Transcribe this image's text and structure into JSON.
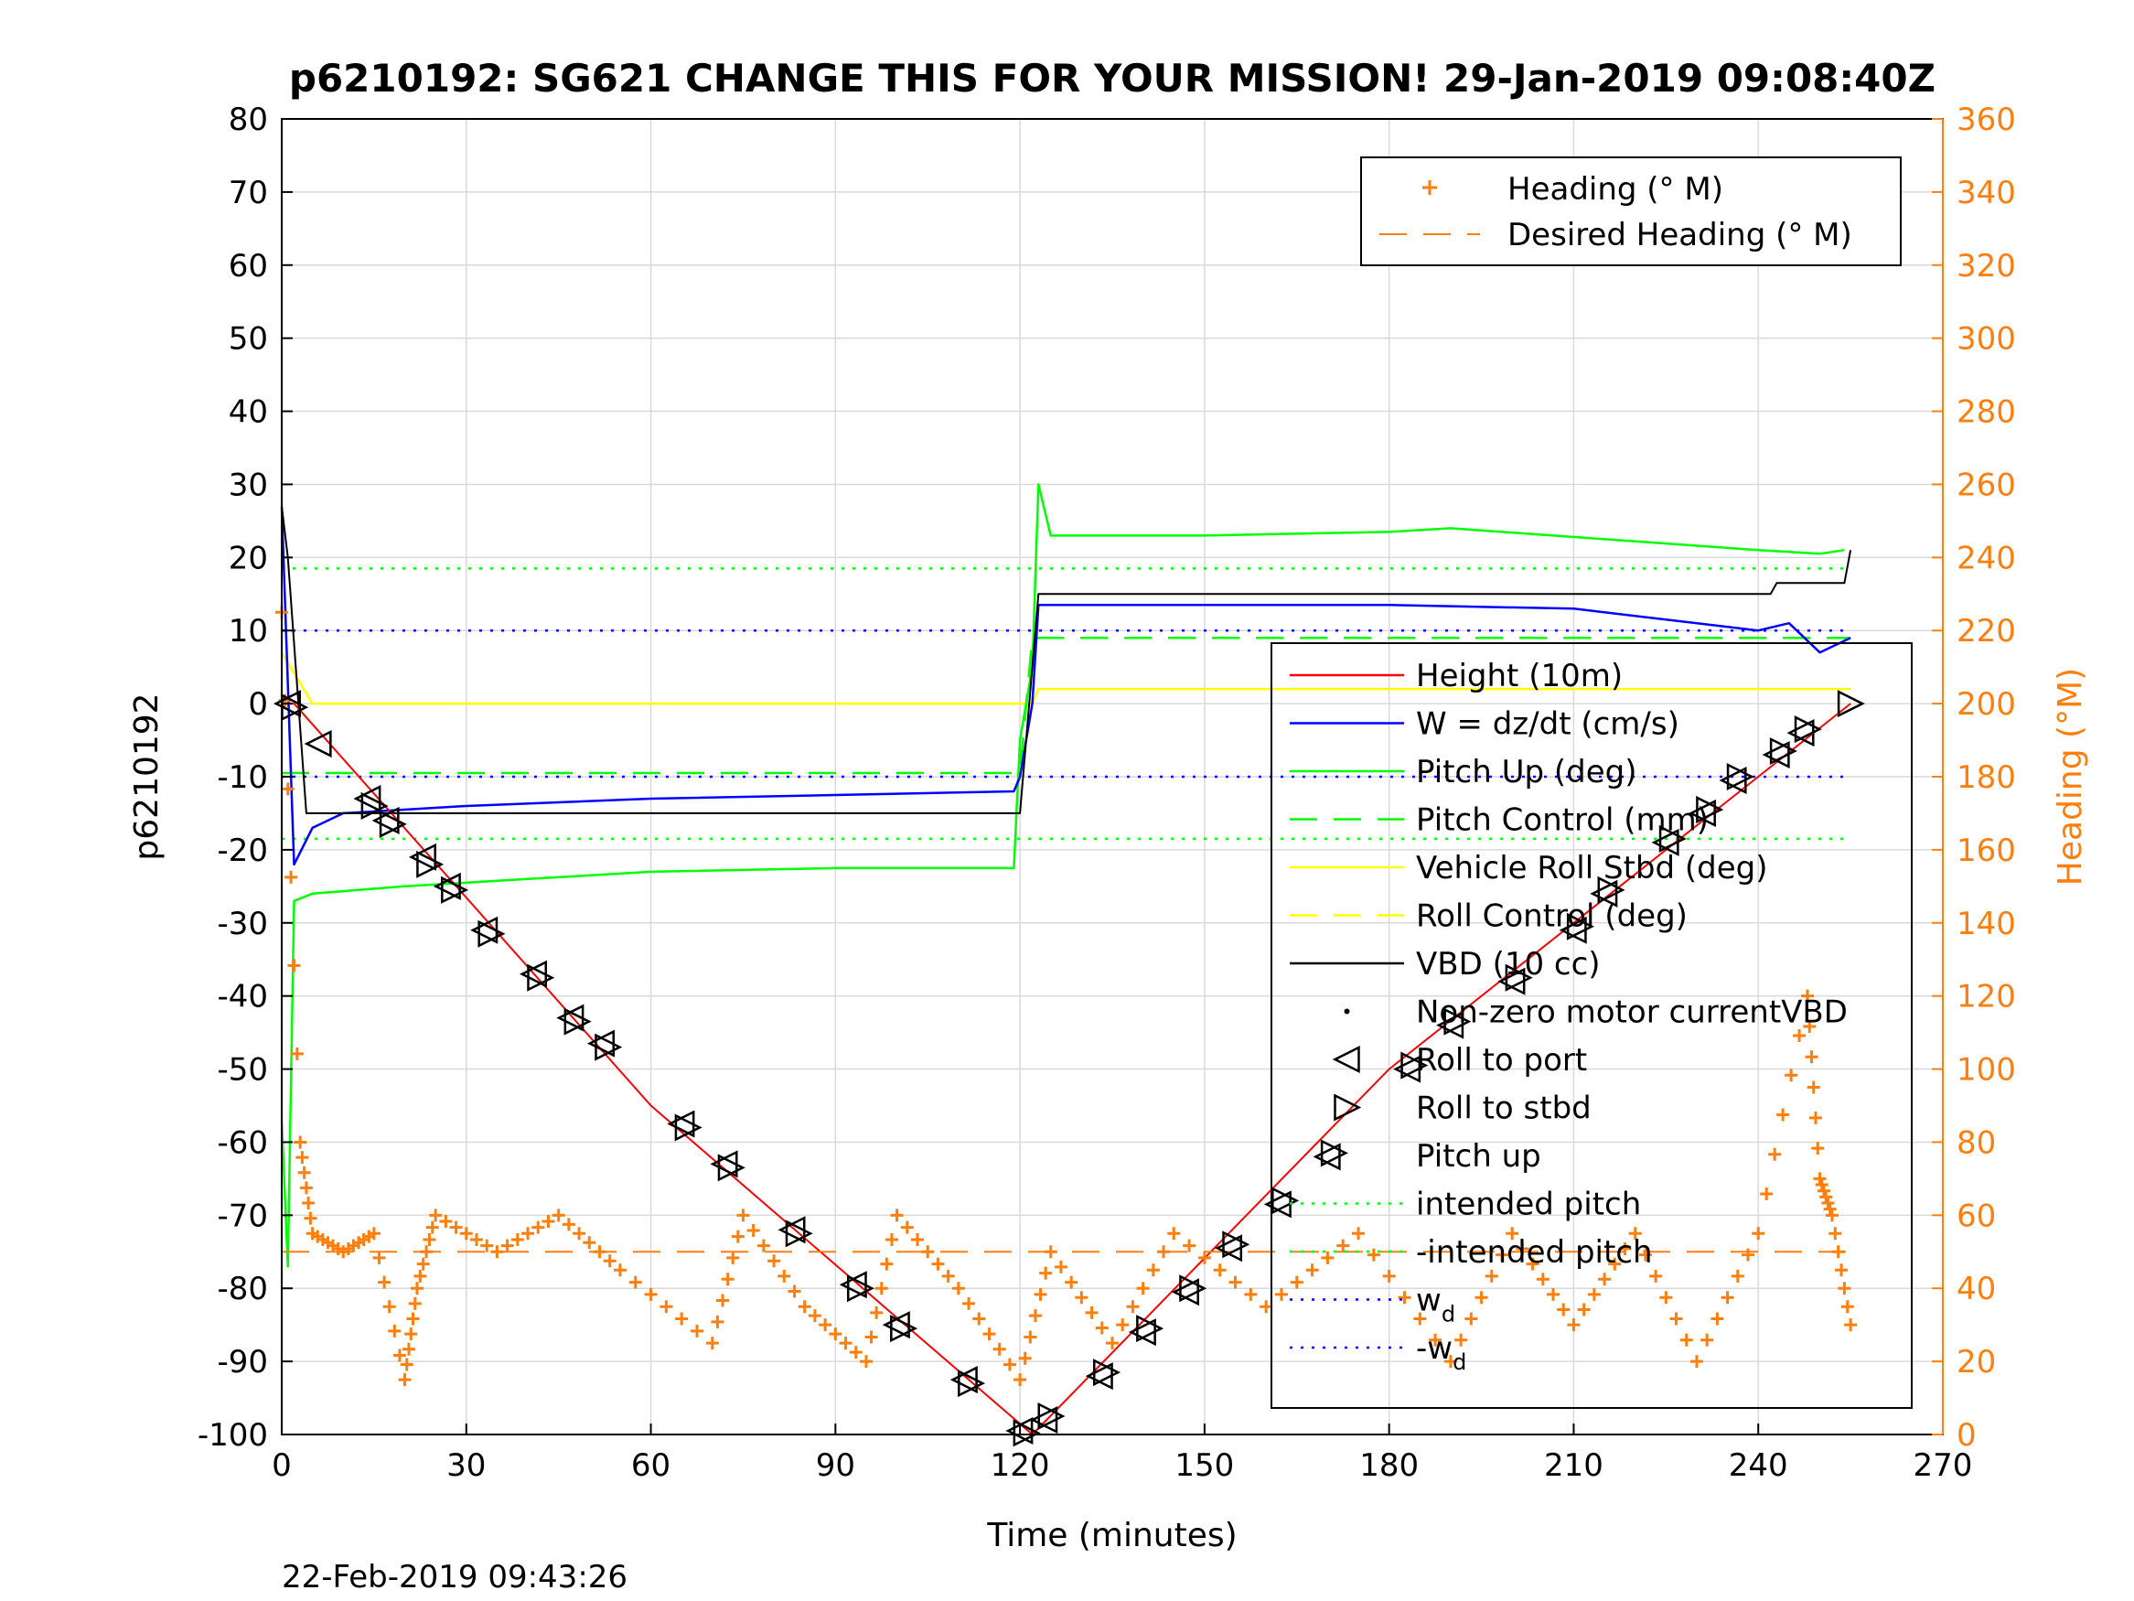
{
  "chart_data": {
    "type": "line",
    "title": "p6210192: SG621 CHANGE THIS FOR YOUR MISSION! 29-Jan-2019 09:08:40Z",
    "xlabel": "Time (minutes)",
    "ylabel": "p6210192",
    "ylabel_right": "Heading (°M)",
    "xlim": [
      0,
      270
    ],
    "ylim": [
      -100,
      80
    ],
    "ylim_right": [
      0,
      360
    ],
    "xticks": [
      "0",
      "30",
      "60",
      "90",
      "120",
      "150",
      "180",
      "210",
      "240",
      "270"
    ],
    "yticks": [
      "80",
      "70",
      "60",
      "50",
      "40",
      "30",
      "20",
      "10",
      "0",
      "-10",
      "-20",
      "-30",
      "-40",
      "-50",
      "-60",
      "-70",
      "-80",
      "-90",
      "-100"
    ],
    "yticks_right": [
      "360",
      "340",
      "320",
      "300",
      "280",
      "260",
      "240",
      "220",
      "200",
      "180",
      "160",
      "140",
      "120",
      "100",
      "80",
      "60",
      "40",
      "20",
      "0"
    ],
    "grid": true,
    "footer": "22-Feb-2019 09:43:26",
    "colors": {
      "heading": "#ff7f0e",
      "height": "#ff0000",
      "w": "#0000ff",
      "pitch": "#00ff00",
      "roll": "#ffff00",
      "vbd": "#000000",
      "grid": "#d9d9d9"
    },
    "legend_right": {
      "placement": "top-right",
      "entries": [
        "Heading (° M)",
        "Desired Heading (° M)"
      ]
    },
    "legend_left": {
      "placement": "center-right",
      "entries": [
        "Height (10m)",
        "W = dz/dt (cm/s)",
        "Pitch Up (deg)",
        "Pitch Control (mm)",
        "Vehicle Roll Stbd (deg)",
        "Roll Control (deg)",
        "VBD (10 cc)",
        "Non-zero motor currentVBD",
        "Roll to port",
        "Roll to stbd",
        "Pitch up",
        "intended pitch",
        "-intended pitch",
        "w",
        "-w"
      ],
      "subscript": "d"
    },
    "series": [
      {
        "name": "Height (10m)",
        "x": [
          0,
          2,
          60,
          122,
          180,
          255
        ],
        "y": [
          0,
          0,
          -55,
          -100,
          -50,
          0
        ]
      },
      {
        "name": "W = dz/dt (cm/s)",
        "x": [
          0,
          2,
          5,
          10,
          30,
          60,
          90,
          119,
          120,
          122,
          123,
          150,
          180,
          210,
          240,
          245,
          250,
          255
        ],
        "y": [
          27,
          -22,
          -17,
          -15,
          -14,
          -13,
          -12.5,
          -12,
          -10,
          0,
          13.5,
          13.5,
          13.5,
          13,
          10,
          11,
          7,
          9
        ]
      },
      {
        "name": "Pitch Up (deg)",
        "x": [
          0,
          1,
          2,
          5,
          20,
          40,
          60,
          90,
          119,
          120,
          122,
          123,
          125,
          150,
          180,
          190,
          240,
          250,
          254
        ],
        "y": [
          -57,
          -77,
          -27,
          -26,
          -25,
          -24,
          -23,
          -22.5,
          -22.5,
          -5,
          5,
          30,
          23,
          23,
          23.5,
          24,
          21,
          20.5,
          21
        ]
      },
      {
        "name": "Pitch Control (mm)",
        "x": [
          0,
          120,
          122,
          255
        ],
        "y": [
          -9.5,
          -9.5,
          9,
          9
        ]
      },
      {
        "name": "Vehicle Roll Stbd (deg)",
        "x": [
          0,
          5,
          10,
          60,
          119,
          122,
          123,
          150,
          200,
          240,
          255
        ],
        "y": [
          7,
          0,
          0,
          0,
          0,
          0,
          2,
          2,
          2,
          2,
          2
        ]
      },
      {
        "name": "VBD (10 cc)",
        "x": [
          0,
          1,
          4,
          120,
          123,
          242,
          243,
          254,
          255
        ],
        "y": [
          27,
          20,
          -15,
          -15,
          15,
          15,
          16.5,
          16.5,
          21
        ]
      },
      {
        "name": "Heading (° M)",
        "x": [
          0,
          3,
          5,
          10,
          15,
          20,
          22,
          25,
          35,
          45,
          55,
          70,
          75,
          85,
          95,
          100,
          110,
          120,
          125,
          135,
          145,
          160,
          175,
          190,
          200,
          210,
          220,
          230,
          240,
          248,
          250,
          252,
          255
        ],
        "y": [
          225,
          80,
          55,
          50,
          55,
          15,
          40,
          60,
          50,
          60,
          45,
          25,
          60,
          35,
          20,
          60,
          40,
          15,
          50,
          25,
          55,
          35,
          55,
          20,
          55,
          30,
          55,
          20,
          55,
          120,
          70,
          60,
          30
        ]
      },
      {
        "name": "Desired Heading (° M)",
        "x": [
          0,
          120,
          125,
          240,
          250,
          255
        ],
        "y": [
          50,
          50,
          50,
          50,
          50,
          50
        ]
      }
    ],
    "lines_constant": [
      {
        "name": "intended pitch",
        "y": 18.5
      },
      {
        "name": "-intended pitch",
        "y": -18.5
      },
      {
        "name": "w_d",
        "y": 10
      },
      {
        "name": "-w_d",
        "y": -10
      }
    ],
    "markers": {
      "roll_to_port": [
        [
          1,
          0
        ],
        [
          6,
          -5.5
        ],
        [
          14,
          -13
        ],
        [
          17,
          -16
        ],
        [
          23,
          -21
        ],
        [
          27,
          -25
        ],
        [
          33,
          -31
        ],
        [
          41,
          -37
        ],
        [
          47,
          -43
        ],
        [
          52,
          -46.5
        ],
        [
          65,
          -57.5
        ],
        [
          72,
          -63
        ],
        [
          83,
          -72
        ],
        [
          93,
          -79.5
        ],
        [
          100,
          -85
        ],
        [
          111,
          -92.5
        ],
        [
          120,
          -99.5
        ],
        [
          124,
          -98
        ],
        [
          133,
          -92
        ],
        [
          140,
          -86
        ],
        [
          147,
          -80.5
        ],
        [
          154,
          -74.5
        ],
        [
          162,
          -68.5
        ],
        [
          170,
          -62
        ],
        [
          183,
          -50
        ],
        [
          190,
          -44
        ],
        [
          200,
          -38
        ],
        [
          210,
          -31
        ],
        [
          215,
          -26
        ],
        [
          225,
          -19
        ],
        [
          231,
          -15
        ],
        [
          236,
          -10.5
        ],
        [
          243,
          -7
        ],
        [
          247,
          -4
        ]
      ],
      "roll_to_stbd": [
        [
          2,
          -0.5
        ],
        [
          15,
          -14
        ],
        [
          18,
          -16.5
        ],
        [
          24,
          -22
        ],
        [
          28,
          -25.5
        ],
        [
          34,
          -31.5
        ],
        [
          42,
          -37.5
        ],
        [
          48,
          -43.5
        ],
        [
          53,
          -47
        ],
        [
          66,
          -58
        ],
        [
          73,
          -63.5
        ],
        [
          84,
          -72.5
        ],
        [
          94,
          -80
        ],
        [
          101,
          -85.5
        ],
        [
          112,
          -93
        ],
        [
          121,
          -99.8
        ],
        [
          125,
          -97.5
        ],
        [
          134,
          -91.5
        ],
        [
          141,
          -85.5
        ],
        [
          148,
          -80
        ],
        [
          155,
          -74
        ],
        [
          163,
          -68
        ],
        [
          171,
          -61.5
        ],
        [
          184,
          -49.5
        ],
        [
          191,
          -43.5
        ],
        [
          201,
          -37.5
        ],
        [
          211,
          -30.5
        ],
        [
          216,
          -25.5
        ],
        [
          226,
          -18.5
        ],
        [
          232,
          -14.5
        ],
        [
          237,
          -10
        ],
        [
          244,
          -6.5
        ],
        [
          248,
          -3.5
        ],
        [
          255,
          0
        ]
      ]
    }
  }
}
